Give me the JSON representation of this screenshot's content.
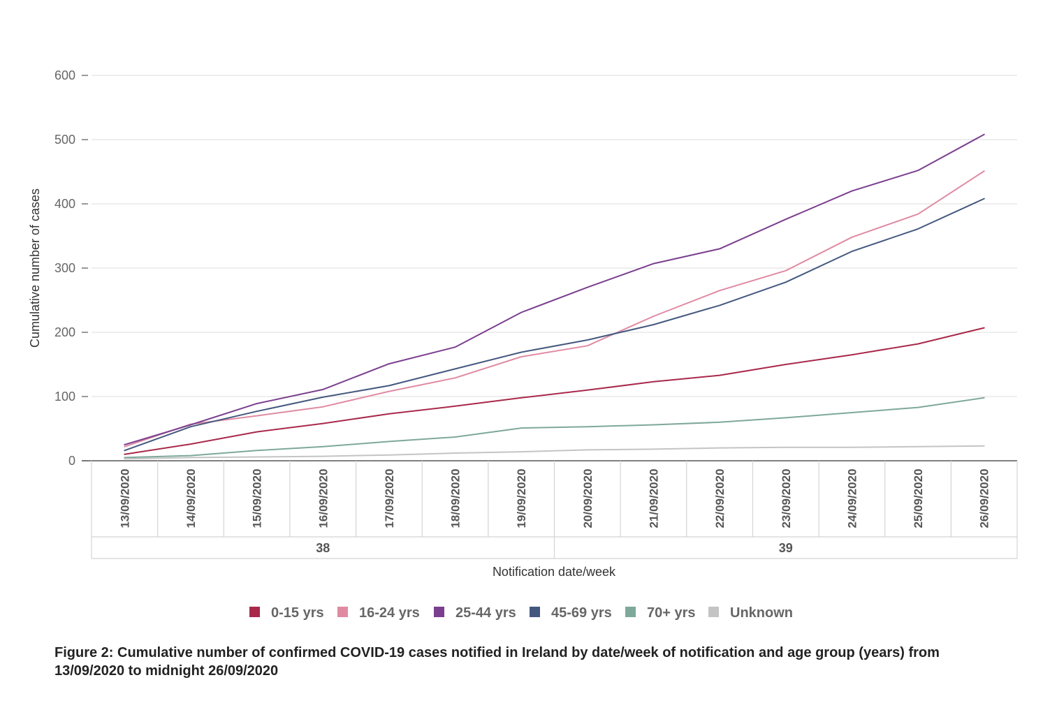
{
  "chart_data": {
    "type": "line",
    "title": "",
    "xlabel": "Notification date/week",
    "ylabel": "Cumulative number of cases",
    "ylim": [
      0,
      600
    ],
    "yticks": [
      0,
      100,
      200,
      300,
      400,
      500,
      600
    ],
    "grid": true,
    "categories": [
      "13/09/2020",
      "14/09/2020",
      "15/09/2020",
      "16/09/2020",
      "17/09/2020",
      "18/09/2020",
      "19/09/2020",
      "20/09/2020",
      "21/09/2020",
      "22/09/2020",
      "23/09/2020",
      "24/09/2020",
      "25/09/2020",
      "26/09/2020"
    ],
    "weeks": [
      {
        "label": "38",
        "start": "13/09/2020",
        "end": "19/09/2020"
      },
      {
        "label": "39",
        "start": "20/09/2020",
        "end": "26/09/2020"
      }
    ],
    "legend_position": "bottom",
    "series": [
      {
        "name": "0-15 yrs",
        "color": "#a8294a",
        "values": [
          10,
          26,
          45,
          58,
          73,
          85,
          98,
          110,
          123,
          133,
          150,
          165,
          182,
          207
        ]
      },
      {
        "name": "16-24 yrs",
        "color": "#e08aa2",
        "values": [
          22,
          57,
          70,
          84,
          108,
          129,
          162,
          179,
          225,
          265,
          296,
          348,
          384,
          451
        ]
      },
      {
        "name": "25-44 yrs",
        "color": "#7b3f8f",
        "values": [
          25,
          56,
          89,
          111,
          151,
          177,
          231,
          270,
          307,
          330,
          376,
          420,
          452,
          508
        ]
      },
      {
        "name": "45-69 yrs",
        "color": "#44587f",
        "values": [
          16,
          53,
          77,
          99,
          117,
          143,
          169,
          188,
          212,
          242,
          278,
          326,
          361,
          408
        ]
      },
      {
        "name": "70+ yrs",
        "color": "#7ea89a",
        "values": [
          5,
          8,
          16,
          22,
          30,
          37,
          51,
          53,
          56,
          60,
          67,
          75,
          83,
          98
        ]
      },
      {
        "name": "Unknown",
        "color": "#c4c4c4",
        "values": [
          3,
          5,
          6,
          7,
          9,
          12,
          14,
          17,
          18,
          20,
          21,
          21,
          22,
          23
        ]
      }
    ]
  },
  "caption": "Figure 2: Cumulative number of confirmed COVID-19 cases notified in Ireland by date/week of notification and age group (years) from 13/09/2020 to midnight 26/09/2020"
}
